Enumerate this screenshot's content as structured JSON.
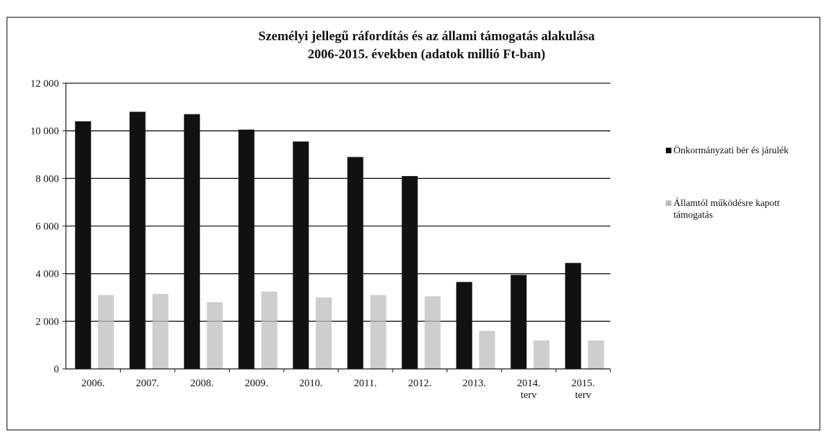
{
  "chart_data": {
    "type": "bar",
    "title": [
      "Személyi jellegű ráfordítás és az állami támogatás alakulása",
      "2006-2015. években (adatok millió Ft-ban)"
    ],
    "categories": [
      [
        "2006."
      ],
      [
        "2007."
      ],
      [
        "2008."
      ],
      [
        "2009."
      ],
      [
        "2010."
      ],
      [
        "2011."
      ],
      [
        "2012."
      ],
      [
        "2013."
      ],
      [
        "2014.",
        "terv"
      ],
      [
        "2015.",
        "terv"
      ]
    ],
    "series": [
      {
        "name": "Önkormányzati bér és járulék",
        "color": "#111111",
        "values": [
          10400,
          10800,
          10700,
          10050,
          9550,
          8900,
          8100,
          3650,
          3950,
          4450
        ]
      },
      {
        "name": "Államtól működésre kapott támogatás",
        "color": "#bdbdbd",
        "values": [
          3100,
          3150,
          2800,
          3250,
          3000,
          3100,
          3050,
          1600,
          1200,
          1200
        ]
      }
    ],
    "y_ticks": [
      "0",
      "2 000",
      "4 000",
      "6 000",
      "8 000",
      "10 000",
      "12 000"
    ],
    "ylim": [
      0,
      12000
    ],
    "grid": true,
    "legend_position": "right"
  }
}
